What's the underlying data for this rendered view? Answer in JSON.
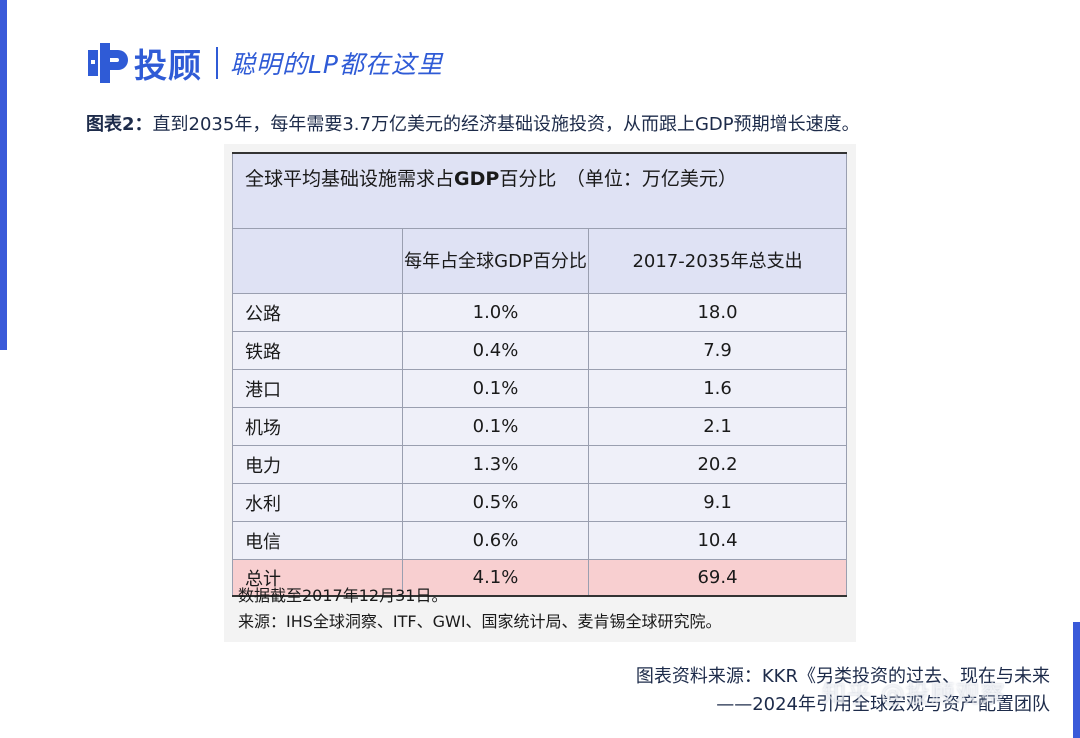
{
  "brand": {
    "name": "投顾",
    "slogan": "聪明的LP都在这里",
    "color": "#2f5bd6"
  },
  "caption": {
    "label": "图表2：",
    "text": "直到2035年，每年需要3.7万亿美元的经济基础设施投资，从而跟上GDP预期增长速度。"
  },
  "table": {
    "title_prefix": "全球平均基础设施需求占",
    "title_bold": "GDP",
    "title_suffix": "百分比　（单位：万亿美元）",
    "headers": [
      "",
      "每年占全球GDP百分比",
      "2017-2035年总支出"
    ],
    "rows": [
      {
        "name": "公路",
        "pct": "1.0%",
        "total": "18.0"
      },
      {
        "name": "铁路",
        "pct": "0.4%",
        "total": "7.9"
      },
      {
        "name": "港口",
        "pct": "0.1%",
        "total": "1.6"
      },
      {
        "name": "机场",
        "pct": "0.1%",
        "total": "2.1"
      },
      {
        "name": "电力",
        "pct": "1.3%",
        "total": "20.2"
      },
      {
        "name": "水利",
        "pct": "0.5%",
        "total": "9.1"
      },
      {
        "name": "电信",
        "pct": "0.6%",
        "total": "10.4"
      }
    ],
    "total_row": {
      "name": "总计",
      "pct": "4.1%",
      "total": "69.4"
    },
    "total_color": "#f8cfd0",
    "header_color": "#dfe2f4"
  },
  "notes": {
    "date_note": "数据截至2017年12月31日。",
    "source_note": "来源：IHS全球洞察、ITF、GWI、国家统计局、麦肯锡全球研究院。"
  },
  "footer": {
    "source_line1": "图表资料来源：KKR《另类投资的过去、现在与未来",
    "source_line2": "——2024年引用全球宏观与资产配置团队"
  },
  "watermark": "知乎 @投顾观察"
}
